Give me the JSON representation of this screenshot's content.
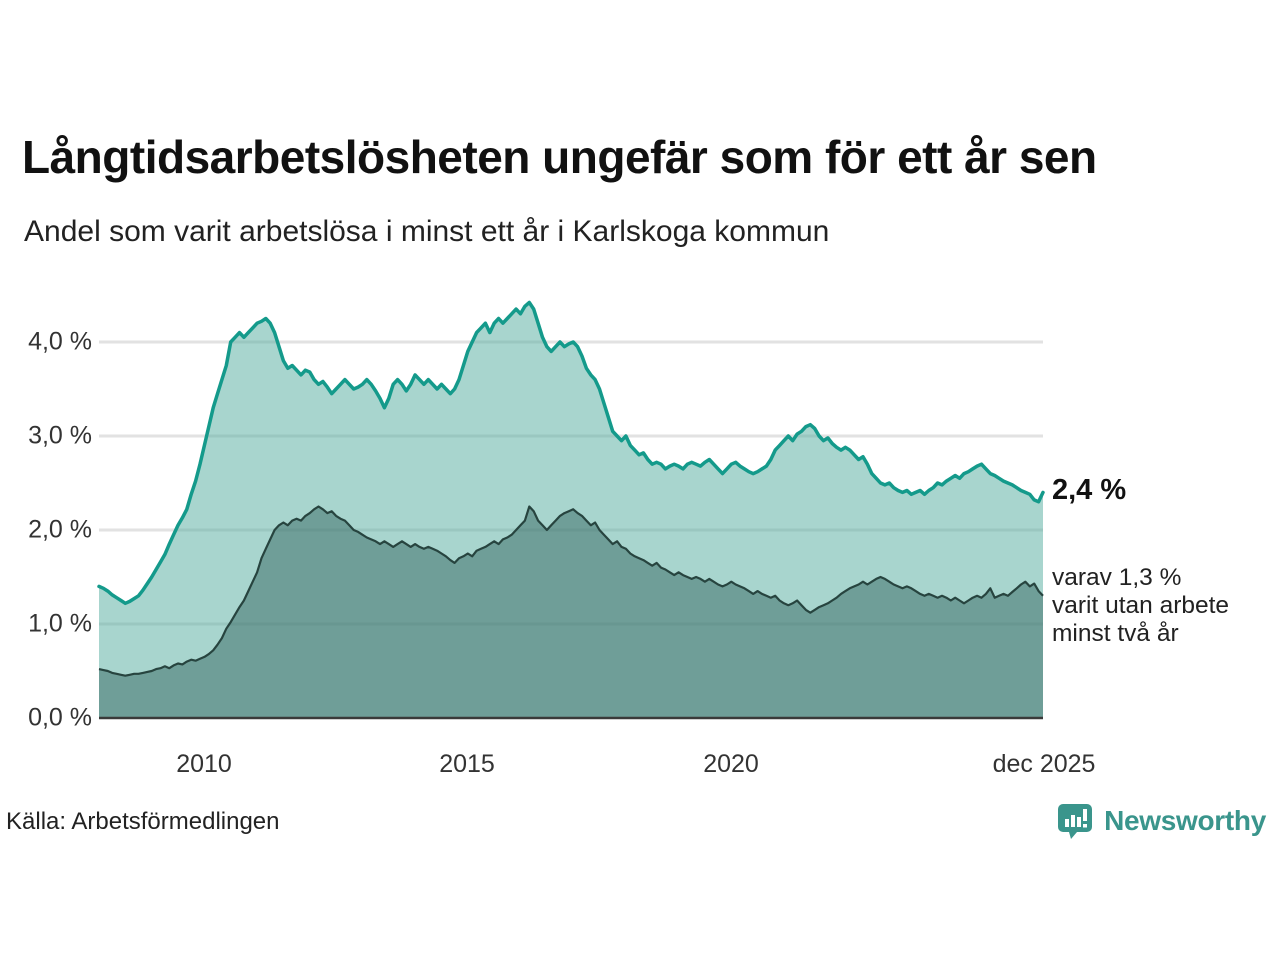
{
  "title": "Långtidsarbetslösheten ungefär som för ett år sen",
  "subtitle": "Andel som varit arbetslösa i minst ett år i Karlskoga kommun",
  "source": "Källa: Arbetsförmedlingen",
  "branding": {
    "name": "Newsworthy",
    "color": "#3a958c"
  },
  "annotations": {
    "latest_value": "2,4 %",
    "secondary_lines": [
      "varav 1,3 %",
      "varit utan arbete",
      "minst två år"
    ]
  },
  "chart_data": {
    "type": "area",
    "title": "Långtidsarbetslösheten ungefär som för ett år sen",
    "subtitle": "Andel som varit arbetslösa i minst ett år i Karlskoga kommun",
    "frequency": "monthly",
    "x_start": "2008-01",
    "x_end": "2025-12",
    "xlabel": "",
    "ylabel": "",
    "ylim": [
      0,
      4.6
    ],
    "grid": true,
    "legend": "none",
    "colors": {
      "line_primary": "#149a8b",
      "fill_primary": "#a8d5ce",
      "line_secondary": "#27443f",
      "fill_secondary": "#6f9e98",
      "gridline": "#e2e2e2",
      "axis": "#3a3a3a"
    },
    "yticks": [
      {
        "label": "4,0 %",
        "value": 4.0
      },
      {
        "label": "3,0 %",
        "value": 3.0
      },
      {
        "label": "2,0 %",
        "value": 2.0
      },
      {
        "label": "1,0 %",
        "value": 1.0
      },
      {
        "label": "0,0 %",
        "value": 0.0
      }
    ],
    "xticks": [
      {
        "label": "2010",
        "date": "2010-01"
      },
      {
        "label": "2015",
        "date": "2015-01"
      },
      {
        "label": "2020",
        "date": "2020-01"
      },
      {
        "label": "dec 2025",
        "date": "2025-12"
      }
    ],
    "series": [
      {
        "name": "Arbetslösa minst ett år",
        "latest_label": "2,4 %",
        "latest_value": 2.4,
        "values": [
          1.4,
          1.38,
          1.35,
          1.31,
          1.28,
          1.25,
          1.22,
          1.24,
          1.27,
          1.3,
          1.36,
          1.43,
          1.5,
          1.58,
          1.66,
          1.74,
          1.85,
          1.95,
          2.05,
          2.13,
          2.22,
          2.38,
          2.52,
          2.7,
          2.9,
          3.1,
          3.3,
          3.45,
          3.6,
          3.75,
          4.0,
          4.05,
          4.1,
          4.05,
          4.1,
          4.15,
          4.2,
          4.22,
          4.25,
          4.2,
          4.1,
          3.95,
          3.8,
          3.72,
          3.75,
          3.7,
          3.65,
          3.7,
          3.68,
          3.6,
          3.55,
          3.58,
          3.52,
          3.45,
          3.5,
          3.55,
          3.6,
          3.55,
          3.5,
          3.52,
          3.55,
          3.6,
          3.55,
          3.48,
          3.4,
          3.3,
          3.4,
          3.55,
          3.6,
          3.55,
          3.48,
          3.55,
          3.65,
          3.6,
          3.55,
          3.6,
          3.55,
          3.5,
          3.55,
          3.5,
          3.45,
          3.5,
          3.6,
          3.75,
          3.9,
          4.0,
          4.1,
          4.15,
          4.2,
          4.1,
          4.2,
          4.25,
          4.2,
          4.25,
          4.3,
          4.35,
          4.3,
          4.38,
          4.42,
          4.35,
          4.2,
          4.05,
          3.95,
          3.9,
          3.95,
          4.0,
          3.95,
          3.98,
          4.0,
          3.95,
          3.85,
          3.72,
          3.65,
          3.6,
          3.5,
          3.35,
          3.2,
          3.05,
          3.0,
          2.95,
          3.0,
          2.9,
          2.85,
          2.8,
          2.82,
          2.75,
          2.7,
          2.72,
          2.7,
          2.65,
          2.68,
          2.7,
          2.68,
          2.65,
          2.7,
          2.72,
          2.7,
          2.68,
          2.72,
          2.75,
          2.7,
          2.65,
          2.6,
          2.65,
          2.7,
          2.72,
          2.68,
          2.65,
          2.62,
          2.6,
          2.62,
          2.65,
          2.68,
          2.75,
          2.85,
          2.9,
          2.95,
          3.0,
          2.95,
          3.02,
          3.05,
          3.1,
          3.12,
          3.08,
          3.0,
          2.95,
          2.98,
          2.92,
          2.88,
          2.85,
          2.88,
          2.85,
          2.8,
          2.75,
          2.78,
          2.7,
          2.6,
          2.55,
          2.5,
          2.48,
          2.5,
          2.45,
          2.42,
          2.4,
          2.42,
          2.38,
          2.4,
          2.42,
          2.38,
          2.42,
          2.45,
          2.5,
          2.48,
          2.52,
          2.55,
          2.58,
          2.55,
          2.6,
          2.62,
          2.65,
          2.68,
          2.7,
          2.65,
          2.6,
          2.58,
          2.55,
          2.52,
          2.5,
          2.48,
          2.45,
          2.42,
          2.4,
          2.38,
          2.32,
          2.3,
          2.4
        ]
      },
      {
        "name": "varav arbetslösa minst två år",
        "latest_label": "1,3 %",
        "latest_value": 1.3,
        "values": [
          0.52,
          0.51,
          0.5,
          0.48,
          0.47,
          0.46,
          0.45,
          0.46,
          0.47,
          0.47,
          0.48,
          0.49,
          0.5,
          0.52,
          0.53,
          0.55,
          0.53,
          0.56,
          0.58,
          0.57,
          0.6,
          0.62,
          0.61,
          0.63,
          0.65,
          0.68,
          0.72,
          0.78,
          0.85,
          0.95,
          1.02,
          1.1,
          1.18,
          1.25,
          1.35,
          1.45,
          1.55,
          1.7,
          1.8,
          1.9,
          2.0,
          2.05,
          2.08,
          2.05,
          2.1,
          2.12,
          2.1,
          2.15,
          2.18,
          2.22,
          2.25,
          2.22,
          2.18,
          2.2,
          2.15,
          2.12,
          2.1,
          2.05,
          2.0,
          1.98,
          1.95,
          1.92,
          1.9,
          1.88,
          1.85,
          1.88,
          1.85,
          1.82,
          1.85,
          1.88,
          1.85,
          1.82,
          1.85,
          1.82,
          1.8,
          1.82,
          1.8,
          1.78,
          1.75,
          1.72,
          1.68,
          1.65,
          1.7,
          1.72,
          1.75,
          1.72,
          1.78,
          1.8,
          1.82,
          1.85,
          1.88,
          1.85,
          1.9,
          1.92,
          1.95,
          2.0,
          2.05,
          2.1,
          2.25,
          2.2,
          2.1,
          2.05,
          2.0,
          2.05,
          2.1,
          2.15,
          2.18,
          2.2,
          2.22,
          2.18,
          2.15,
          2.1,
          2.05,
          2.08,
          2.0,
          1.95,
          1.9,
          1.85,
          1.88,
          1.82,
          1.8,
          1.75,
          1.72,
          1.7,
          1.68,
          1.65,
          1.62,
          1.65,
          1.6,
          1.58,
          1.55,
          1.52,
          1.55,
          1.52,
          1.5,
          1.48,
          1.5,
          1.48,
          1.45,
          1.48,
          1.45,
          1.42,
          1.4,
          1.42,
          1.45,
          1.42,
          1.4,
          1.38,
          1.35,
          1.32,
          1.35,
          1.32,
          1.3,
          1.28,
          1.3,
          1.25,
          1.22,
          1.2,
          1.22,
          1.25,
          1.2,
          1.15,
          1.12,
          1.15,
          1.18,
          1.2,
          1.22,
          1.25,
          1.28,
          1.32,
          1.35,
          1.38,
          1.4,
          1.42,
          1.45,
          1.42,
          1.45,
          1.48,
          1.5,
          1.48,
          1.45,
          1.42,
          1.4,
          1.38,
          1.4,
          1.38,
          1.35,
          1.32,
          1.3,
          1.32,
          1.3,
          1.28,
          1.3,
          1.28,
          1.25,
          1.28,
          1.25,
          1.22,
          1.25,
          1.28,
          1.3,
          1.28,
          1.32,
          1.38,
          1.28,
          1.3,
          1.32,
          1.3,
          1.34,
          1.38,
          1.42,
          1.45,
          1.4,
          1.43,
          1.35,
          1.3
        ]
      }
    ]
  }
}
